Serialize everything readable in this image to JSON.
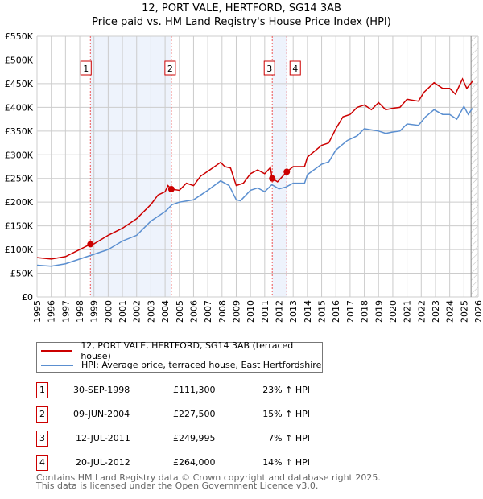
{
  "title": "12, PORT VALE, HERTFORD, SG14 3AB",
  "subtitle": "Price paid vs. HM Land Registry's House Price Index (HPI)",
  "chart_data": {
    "type": "line",
    "title": "12, PORT VALE, HERTFORD, SG14 3AB — Price paid vs. HM Land Registry's House Price Index (HPI)",
    "xlim": [
      1995,
      2026
    ],
    "ylim": [
      0,
      550000
    ],
    "x_ticks": [
      "1995",
      "1996",
      "1997",
      "1998",
      "1999",
      "2000",
      "2001",
      "2002",
      "2003",
      "2004",
      "2005",
      "2006",
      "2007",
      "2008",
      "2009",
      "2010",
      "2011",
      "2012",
      "2013",
      "2014",
      "2015",
      "2016",
      "2017",
      "2018",
      "2019",
      "2020",
      "2021",
      "2022",
      "2023",
      "2024",
      "2025",
      "2026"
    ],
    "y_ticks": [
      "£0",
      "£50K",
      "£100K",
      "£150K",
      "£200K",
      "£250K",
      "£300K",
      "£350K",
      "£400K",
      "£450K",
      "£500K",
      "£550K"
    ],
    "grid": true,
    "series": [
      {
        "name": "12, PORT VALE, HERTFORD, SG14 3AB (terraced house)",
        "color": "#cc0000",
        "x": [
          1995,
          1996,
          1997,
          1998,
          1998.75,
          1999,
          2000,
          2001,
          2002,
          2003,
          2003.5,
          2004,
          2004.2,
          2004.44,
          2005,
          2005.5,
          2006,
          2006.5,
          2007,
          2007.9,
          2008.2,
          2008.6,
          2009,
          2009.5,
          2010,
          2010.5,
          2011,
          2011.4,
          2011.53,
          2011.9,
          2012.55,
          2013,
          2013.8,
          2014,
          2015,
          2015.5,
          2016,
          2016.5,
          2017,
          2017.5,
          2018,
          2018.5,
          2019,
          2019.5,
          2020,
          2020.5,
          2021,
          2021.8,
          2022.2,
          2022.9,
          2023.5,
          2024,
          2024.4,
          2024.9,
          2025.2,
          2025.6
        ],
        "y": [
          83000,
          80000,
          85000,
          100000,
          111300,
          112000,
          130000,
          145000,
          165000,
          195000,
          215000,
          222000,
          235000,
          227500,
          225000,
          240000,
          235000,
          255000,
          265000,
          284000,
          275000,
          272000,
          235000,
          240000,
          260000,
          268000,
          260000,
          273000,
          249995,
          243000,
          264000,
          275000,
          275000,
          295000,
          320000,
          325000,
          355000,
          380000,
          385000,
          400000,
          405000,
          395000,
          410000,
          395000,
          398000,
          400000,
          417000,
          413000,
          432000,
          452000,
          440000,
          440000,
          428000,
          460000,
          440000,
          455000
        ]
      },
      {
        "name": "HPI: Average price, terraced house, East Hertfordshire",
        "color": "#5b8fd0",
        "x": [
          1995,
          1996,
          1997,
          1998,
          1999,
          2000,
          2001,
          2002,
          2003,
          2004,
          2004.5,
          2005,
          2006,
          2007,
          2007.9,
          2008.5,
          2009,
          2009.3,
          2010,
          2010.5,
          2011,
          2011.5,
          2012,
          2012.5,
          2013,
          2013.8,
          2014,
          2015,
          2015.5,
          2016,
          2016.8,
          2017.5,
          2018,
          2019,
          2019.5,
          2020,
          2020.5,
          2021,
          2021.8,
          2022.3,
          2022.9,
          2023.5,
          2024,
          2024.5,
          2025,
          2025.3,
          2025.6
        ],
        "y": [
          67000,
          65000,
          70000,
          80000,
          90000,
          100000,
          118000,
          130000,
          160000,
          180000,
          195000,
          200000,
          205000,
          225000,
          245000,
          235000,
          205000,
          203000,
          225000,
          230000,
          222000,
          237000,
          228000,
          232000,
          240000,
          240000,
          258000,
          280000,
          285000,
          310000,
          330000,
          340000,
          355000,
          350000,
          345000,
          348000,
          350000,
          365000,
          362000,
          380000,
          395000,
          385000,
          385000,
          375000,
          402000,
          385000,
          398000
        ]
      }
    ],
    "sales": [
      {
        "id": "1",
        "x": 1998.75,
        "y": 111300
      },
      {
        "id": "2",
        "x": 2004.44,
        "y": 227500
      },
      {
        "id": "3",
        "x": 2011.53,
        "y": 249995
      },
      {
        "id": "4",
        "x": 2012.55,
        "y": 264000
      }
    ],
    "shaded_ranges": [
      [
        1998.75,
        2004.44
      ],
      [
        2011.53,
        2012.55
      ]
    ],
    "forecast_from": 2025.5
  },
  "legend": {
    "property": "12, PORT VALE, HERTFORD, SG14 3AB (terraced house)",
    "hpi": "HPI: Average price, terraced house, East Hertfordshire"
  },
  "transactions": [
    {
      "num": "1",
      "date": "30-SEP-1998",
      "price": "£111,300",
      "hpi": "23% ↑ HPI"
    },
    {
      "num": "2",
      "date": "09-JUN-2004",
      "price": "£227,500",
      "hpi": "15% ↑ HPI"
    },
    {
      "num": "3",
      "date": "12-JUL-2011",
      "price": "£249,995",
      "hpi": "7% ↑ HPI"
    },
    {
      "num": "4",
      "date": "20-JUL-2012",
      "price": "£264,000",
      "hpi": "14% ↑ HPI"
    }
  ],
  "footer": {
    "line1": "Contains HM Land Registry data © Crown copyright and database right 2025.",
    "line2": "This data is licensed under the Open Government Licence v3.0."
  }
}
